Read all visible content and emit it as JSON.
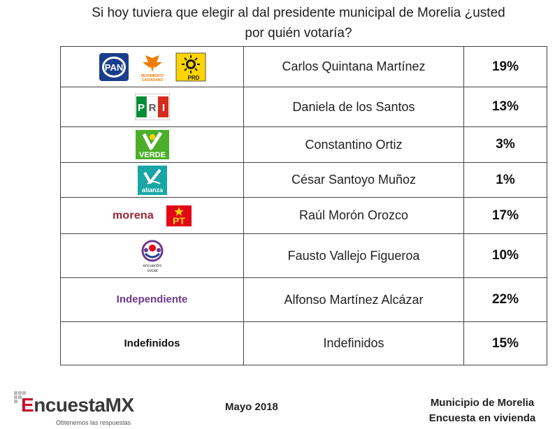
{
  "title_line1": "Si hoy tuviera que elegir al dal presidente municipal de Morelia ¿usted",
  "title_line2": "por quién votaría?",
  "rows": [
    {
      "logos": [
        "PAN",
        "MOVIMIENTO CIUDADANO",
        "PRD"
      ],
      "candidate": "Carlos Quintana Martínez",
      "percent": "19%"
    },
    {
      "logos": [
        "PRI"
      ],
      "candidate": "Daniela de los Santos",
      "percent": "13%"
    },
    {
      "logos": [
        "VERDE"
      ],
      "candidate": "Constantino Ortiz",
      "percent": "3%"
    },
    {
      "logos": [
        "alianza"
      ],
      "candidate": "César Santoyo Muñoz",
      "percent": "1%"
    },
    {
      "logos": [
        "morena",
        "PT"
      ],
      "candidate": "Raúl Morón Orozco",
      "percent": "17%"
    },
    {
      "logos": [
        "encuentro social"
      ],
      "candidate": "Fausto Vallejo Figueroa",
      "percent": "10%"
    },
    {
      "label": "Independiente",
      "candidate": "Alfonso Martínez Alcázar",
      "percent": "22%"
    },
    {
      "label": "Indefinidos",
      "candidate": "Indefinidos",
      "percent": "15%"
    }
  ],
  "footer": {
    "brand_prefix": "E",
    "brand_rest": "ncuestaMX",
    "tagline": "Obtenemos las respuestas",
    "date": "Mayo 2018",
    "right_line1": "Municipio de Morelia",
    "right_line2": "Encuesta en vivienda"
  },
  "colors": {
    "pan_blue": "#1a3e8c",
    "mc_orange": "#f07c00",
    "prd_yellow": "#ffd400",
    "pri_red": "#d52b1e",
    "pri_green": "#008d36",
    "verde_green": "#4caf2a",
    "alianza_teal": "#1aa6a6",
    "morena_red": "#9b2335",
    "pt_red": "#e30613",
    "independiente_purple": "#6d3a8c"
  }
}
